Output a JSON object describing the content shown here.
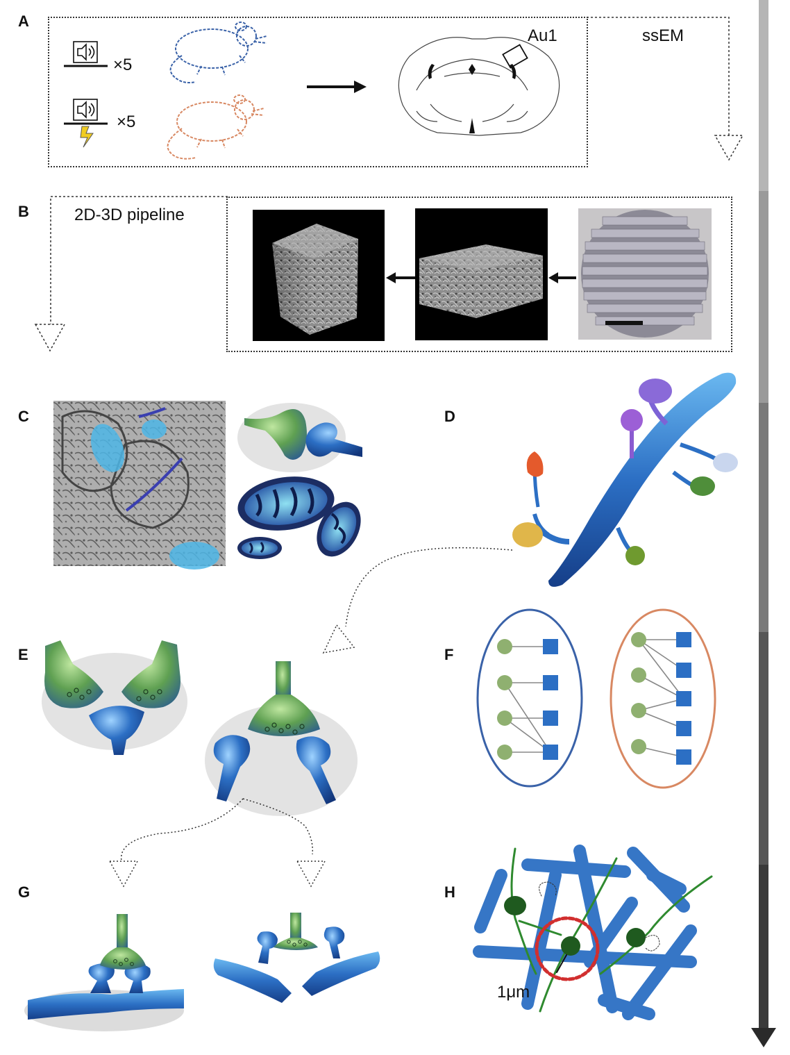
{
  "panels": {
    "a": {
      "label": "A",
      "multiplier_1": "×5",
      "multiplier_2": "×5",
      "region_label": "Au1",
      "method_label": "ssEM"
    },
    "b": {
      "label": "B",
      "pipeline_label": "2D-3D pipeline"
    },
    "c": {
      "label": "C"
    },
    "d": {
      "label": "D"
    },
    "e": {
      "label": "E"
    },
    "f": {
      "label": "F"
    },
    "g": {
      "label": "G"
    },
    "h": {
      "label": "H",
      "scale_label": "1μm"
    }
  },
  "colors": {
    "control": "#3a62a8",
    "conditioned": "#d88862",
    "presynaptic": "#5fa052",
    "postsynaptic": "#2c6fc4",
    "scrollbar": "#3a3a3a"
  },
  "panel_f": {
    "left_links": [
      [
        0,
        0
      ],
      [
        1,
        1
      ],
      [
        1,
        3
      ],
      [
        2,
        2
      ],
      [
        2,
        3
      ],
      [
        3,
        3
      ]
    ],
    "right_links": [
      [
        0,
        0
      ],
      [
        0,
        1
      ],
      [
        0,
        2
      ],
      [
        1,
        2
      ],
      [
        2,
        2
      ],
      [
        2,
        3
      ],
      [
        3,
        4
      ]
    ]
  }
}
